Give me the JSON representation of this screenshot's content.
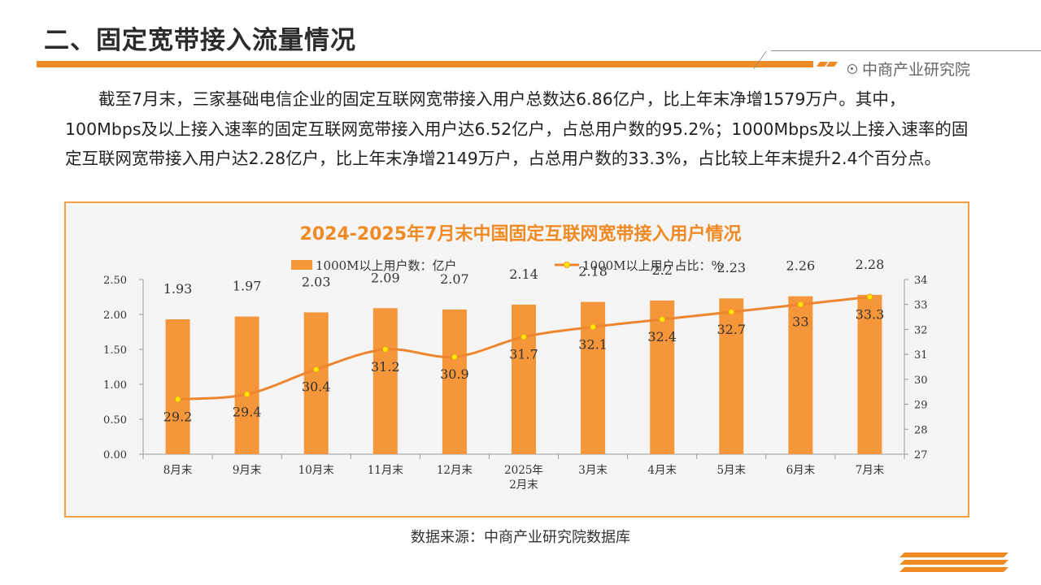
{
  "page": {
    "title": "二、固定宽带接入流量情况",
    "brand": "中商产业研究院",
    "paragraph": "截至7月末，三家基础电信企业的固定互联网宽带接入用户总数达6.86亿户，比上年末净增1579万户。其中，100Mbps及以上接入速率的固定互联网宽带接入用户达6.52亿户，占总用户数的95.2%；1000Mbps及以上接入速率的固定互联网宽带接入用户达2.28亿户，比上年末净增2149万户，占总用户数的33.3%，占比较上年末提升2.4个百分点。",
    "source": "数据来源：中商产业研究院数据库",
    "accent_color": "#f08a24"
  },
  "chart_data": {
    "type": "bar",
    "title": "2024-2025年7月末中国固定互联网宽带接入用户情况",
    "categories": [
      "8月末",
      "9月末",
      "10月末",
      "11月末",
      "12月末",
      "2025年\n2月末",
      "3月末",
      "4月末",
      "5月末",
      "6月末",
      "7月末"
    ],
    "series": [
      {
        "name": "1000M以上用户数：亿户",
        "type": "bar",
        "axis": "left",
        "color": "#f5963a",
        "values": [
          1.93,
          1.97,
          2.03,
          2.09,
          2.07,
          2.14,
          2.18,
          2.2,
          2.23,
          2.26,
          2.28
        ],
        "labels": [
          "1.93",
          "1.97",
          "2.03",
          "2.09",
          "2.07",
          "2.14",
          "2.18",
          "2.2",
          "2.23",
          "2.26",
          "2.28"
        ]
      },
      {
        "name": "1000M以上用户占比：%",
        "type": "line",
        "axis": "right",
        "color": "#ee8630",
        "marker_color": "#ffe600",
        "values": [
          29.2,
          29.4,
          30.4,
          31.2,
          30.9,
          31.7,
          32.1,
          32.4,
          32.7,
          33,
          33.3
        ],
        "labels": [
          "29.2",
          "29.4",
          "30.4",
          "31.2",
          "30.9",
          "31.7",
          "32.1",
          "32.4",
          "32.7",
          "33",
          "33.3"
        ]
      }
    ],
    "y_left": {
      "range": [
        0,
        2.5
      ],
      "ticks": [
        "0.00",
        "0.50",
        "1.00",
        "1.50",
        "2.00",
        "2.50"
      ]
    },
    "y_right": {
      "range": [
        27,
        34
      ],
      "ticks": [
        "27",
        "28",
        "29",
        "30",
        "31",
        "32",
        "33",
        "34"
      ]
    },
    "grid": false,
    "legend": "top"
  }
}
